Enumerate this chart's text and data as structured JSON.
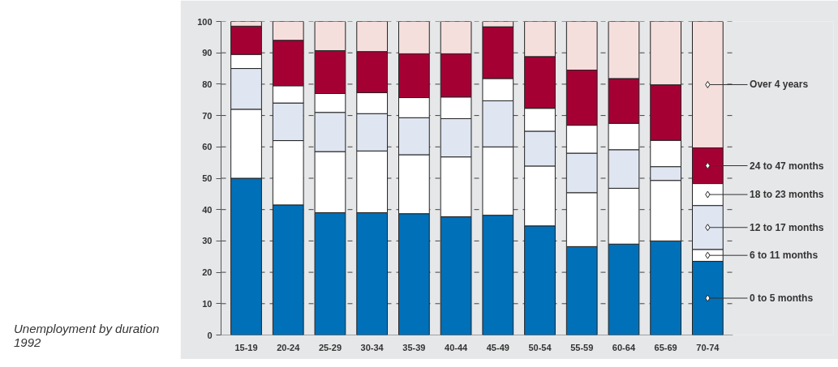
{
  "chart_data": {
    "type": "bar",
    "stacked": true,
    "title": "Unemployment by duration 1992",
    "categories": [
      "15-19",
      "20-24",
      "25-29",
      "30-34",
      "35-39",
      "40-44",
      "45-49",
      "50-54",
      "55-59",
      "60-64",
      "65-69",
      "70-74"
    ],
    "series": [
      {
        "name": "0 to 5 months",
        "color": "#0070b8",
        "values": [
          50,
          41.5,
          39,
          39,
          38.7,
          37.7,
          38.2,
          34.8,
          28.2,
          29,
          30,
          23.5
        ]
      },
      {
        "name": "6 to 11 months",
        "color": "#ffffff",
        "values": [
          22,
          20.5,
          19.5,
          19.7,
          18.8,
          19.1,
          21.8,
          19.1,
          17.2,
          17.8,
          19.3,
          3.8
        ]
      },
      {
        "name": "12 to 17 months",
        "color": "#dfe6f2",
        "values": [
          13,
          12,
          12.5,
          11.9,
          11.8,
          12.2,
          14.7,
          11.1,
          12.6,
          12.3,
          4.4,
          14
        ]
      },
      {
        "name": "18 to 23 months",
        "color": "#ffffff",
        "values": [
          4.5,
          5.5,
          6,
          6.7,
          6.4,
          6.9,
          7.1,
          7.3,
          8.9,
          8.4,
          8.4,
          7
        ]
      },
      {
        "name": "24 to 47 months",
        "color": "#a50034",
        "values": [
          9,
          14.5,
          13.7,
          13.1,
          14,
          13.8,
          16.5,
          16.5,
          17.6,
          14.3,
          17.7,
          11.4
        ]
      },
      {
        "name": "Over 4 years",
        "color": "#f5dfdd",
        "values": [
          1.5,
          6,
          9.3,
          9.6,
          10.3,
          10.3,
          1.7,
          11.2,
          15.5,
          18.2,
          20.2,
          40.3
        ]
      }
    ],
    "ylim": [
      0,
      100
    ],
    "yticks": [
      0,
      10,
      20,
      30,
      40,
      50,
      60,
      70,
      80,
      90,
      100
    ],
    "grid": "y"
  }
}
